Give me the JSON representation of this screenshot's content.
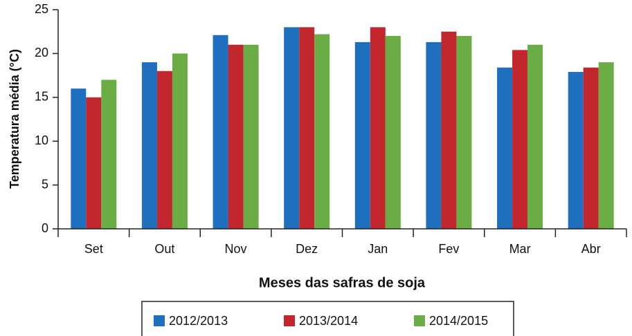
{
  "chart_data": {
    "type": "bar",
    "y_label": "Temperatura média (°C)",
    "x_label": "Meses das safras de soja",
    "categories": [
      "Set",
      "Out",
      "Nov",
      "Dez",
      "Jan",
      "Fev",
      "Mar",
      "Abr"
    ],
    "series": [
      {
        "name": "2012/2013",
        "color": "#1f6fbf",
        "values": [
          16,
          19,
          22.1,
          23,
          21.3,
          21.3,
          18.4,
          17.9
        ]
      },
      {
        "name": "2013/2014",
        "color": "#c1272d",
        "values": [
          15,
          18,
          21,
          23,
          23,
          22.5,
          20.4,
          18.4
        ]
      },
      {
        "name": "2014/2015",
        "color": "#6aad45",
        "values": [
          17,
          20,
          21,
          22.2,
          22,
          22,
          21,
          19
        ]
      }
    ],
    "ylim": [
      0,
      25
    ],
    "yticks": [
      0,
      5,
      10,
      15,
      20,
      25
    ]
  }
}
